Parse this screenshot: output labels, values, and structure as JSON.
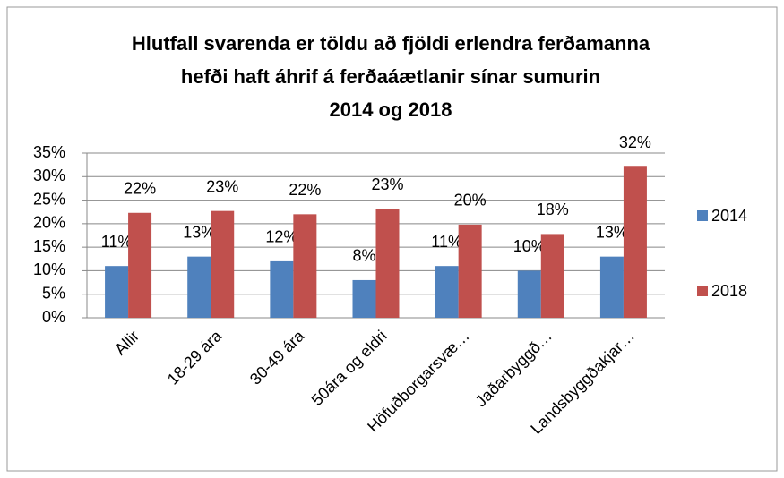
{
  "chart_data": {
    "type": "bar",
    "title": [
      "Hlutfall svarenda er töldu að fjöldi erlendra ferðamanna",
      "hefði haft áhrif á  ferðaáætlanir sínar  sumurin",
      "2014 og 2018"
    ],
    "categories": [
      "Allir",
      "18-29 ára",
      "30-49 ára",
      "50ára  og eldri",
      "Höfuðborgarsvæ…",
      "Jaðarbyggð…",
      "Landsbyggðakjar…"
    ],
    "series": [
      {
        "name": "2014",
        "color": "#4f81bd",
        "values": [
          11,
          13,
          12,
          8,
          11,
          10,
          13
        ],
        "value_labels": [
          "11%",
          "13%",
          "12%",
          "8%",
          "11%",
          "10%",
          "13%"
        ]
      },
      {
        "name": "2018",
        "color": "#c0504d",
        "values": [
          22.3,
          22.7,
          22,
          23.2,
          19.8,
          17.8,
          32.1
        ],
        "value_labels": [
          "22%",
          "23%",
          "22%",
          "23%",
          "20%",
          "18%",
          "32%"
        ]
      }
    ],
    "ylim": [
      0,
      35
    ],
    "yticks": [
      {
        "value": 0,
        "label": "0%"
      },
      {
        "value": 5,
        "label": "5%"
      },
      {
        "value": 10,
        "label": "10%"
      },
      {
        "value": 15,
        "label": "15%"
      },
      {
        "value": 20,
        "label": "20%"
      },
      {
        "value": 25,
        "label": "25%"
      },
      {
        "value": 30,
        "label": "30%"
      },
      {
        "value": 35,
        "label": "35%"
      }
    ],
    "grid": true,
    "legend": "right"
  }
}
